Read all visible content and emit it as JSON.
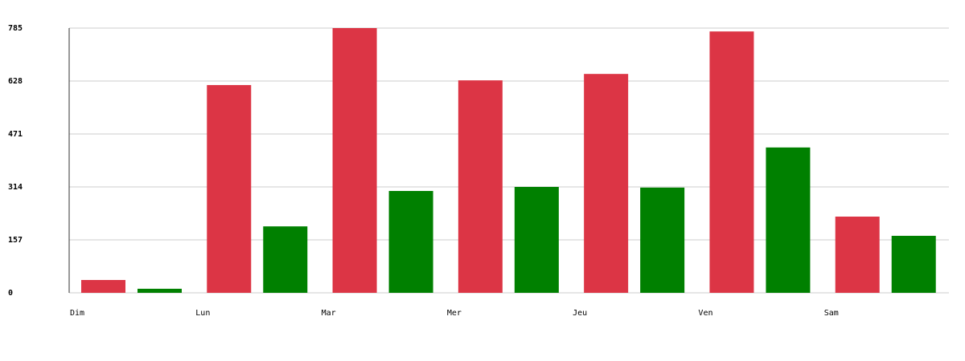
{
  "chart_data": {
    "type": "bar",
    "categories": [
      "Dim",
      "Lun",
      "Mar",
      "Mer",
      "Jeu",
      "Ven",
      "Sam"
    ],
    "series": [
      {
        "color": "#dc3545",
        "values": [
          38,
          616,
          785,
          630,
          649,
          775,
          226
        ]
      },
      {
        "color": "#008000",
        "values": [
          12,
          197,
          302,
          314,
          312,
          431,
          169
        ]
      }
    ],
    "ylim": [
      0,
      785
    ],
    "yticks": [
      0,
      157,
      314,
      471,
      628,
      785
    ],
    "grid": true
  }
}
